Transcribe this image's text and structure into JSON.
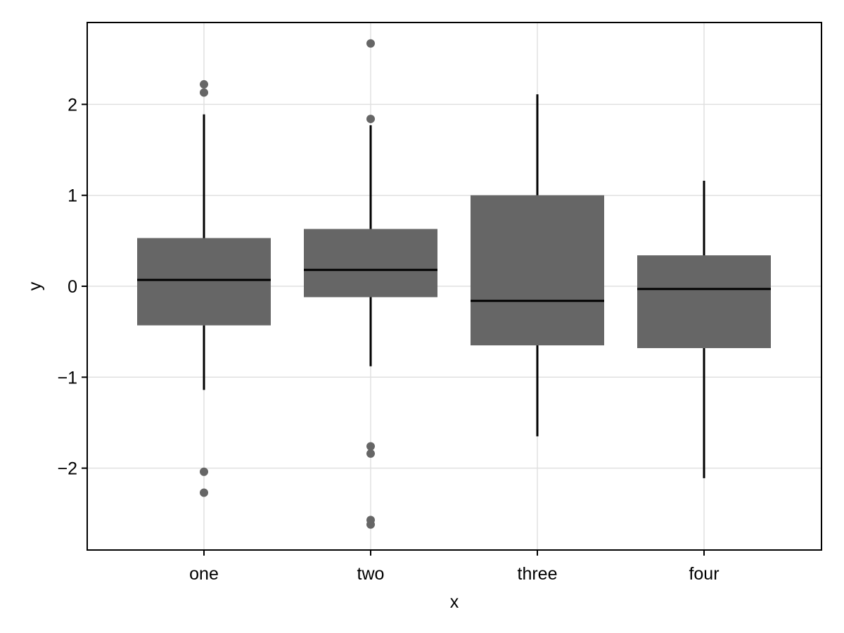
{
  "chart_data": {
    "type": "box",
    "title": "",
    "xlabel": "x",
    "ylabel": "y",
    "ylim": [
      -2.9,
      2.9
    ],
    "yticks": [
      -2,
      -1,
      0,
      1,
      2
    ],
    "ytick_labels": [
      "−2",
      "−1",
      "0",
      "1",
      "2"
    ],
    "grid": true,
    "legend": "none",
    "colors": {
      "box_fill": "#666666",
      "median_line": "#000000",
      "whisker": "#000000",
      "outlier": "#666666",
      "grid": "#e0e0e0",
      "frame": "#000000"
    },
    "categories": [
      "one",
      "two",
      "three",
      "four"
    ],
    "boxes": [
      {
        "category": "one",
        "q1": -0.43,
        "median": 0.07,
        "q3": 0.53,
        "whisker_low": -1.14,
        "whisker_high": 1.89,
        "outliers": [
          2.22,
          2.13,
          -2.04,
          -2.27
        ]
      },
      {
        "category": "two",
        "q1": -0.12,
        "median": 0.18,
        "q3": 0.63,
        "whisker_low": -0.88,
        "whisker_high": 1.77,
        "outliers": [
          2.67,
          1.84,
          -1.76,
          -1.84,
          -2.57,
          -2.62
        ]
      },
      {
        "category": "three",
        "q1": -0.65,
        "median": -0.16,
        "q3": 1.0,
        "whisker_low": -1.65,
        "whisker_high": 2.11,
        "outliers": []
      },
      {
        "category": "four",
        "q1": -0.68,
        "median": -0.03,
        "q3": 0.34,
        "whisker_low": -2.11,
        "whisker_high": 1.16,
        "outliers": []
      }
    ]
  }
}
